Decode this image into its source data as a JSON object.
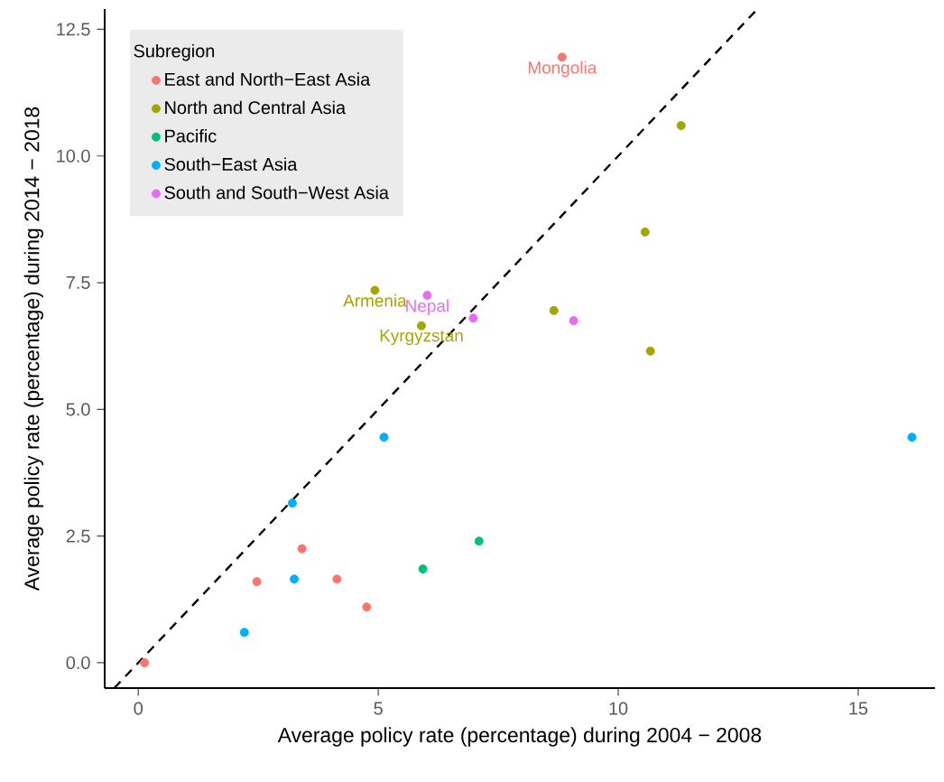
{
  "chart_data": {
    "type": "scatter",
    "xlabel": "Average policy rate (percentage) during 2004 − 2008",
    "ylabel": "Average policy rate (percentage) during 2014 − 2018",
    "legend_title": "Subregion",
    "legend": "top left",
    "grid": false,
    "xlim": [
      -0.7,
      16.6
    ],
    "ylim": [
      -0.5,
      12.9
    ],
    "xticks": [
      0,
      5,
      10,
      15
    ],
    "yticks": [
      {
        "value": 0,
        "label": "0.0"
      },
      {
        "value": 2.5,
        "label": "2.5"
      },
      {
        "value": 5,
        "label": "5.0"
      },
      {
        "value": 7.5,
        "label": "7.5"
      },
      {
        "value": 10,
        "label": "10.0"
      },
      {
        "value": 12.5,
        "label": "12.5"
      }
    ],
    "series": [
      {
        "name": "East and North−East Asia",
        "color": "#f8766d",
        "marker": "circle",
        "x": [
          0.13,
          2.47,
          3.41,
          4.14,
          4.76,
          8.83
        ],
        "values": [
          0.0,
          1.6,
          2.25,
          1.65,
          1.1,
          11.95
        ]
      },
      {
        "name": "North and Central Asia",
        "color": "#a3a500",
        "marker": "circle",
        "x": [
          4.93,
          5.9,
          11.31,
          10.56,
          8.66,
          10.67
        ],
        "values": [
          7.35,
          6.65,
          10.6,
          8.5,
          6.95,
          6.15
        ]
      },
      {
        "name": "Pacific",
        "color": "#00bf7d",
        "marker": "circle",
        "x": [
          5.93,
          7.1
        ],
        "values": [
          1.85,
          2.4
        ]
      },
      {
        "name": "South−East Asia",
        "color": "#00b0f6",
        "marker": "circle",
        "x": [
          5.12,
          3.21,
          3.25,
          2.21,
          16.12
        ],
        "values": [
          4.45,
          3.15,
          1.65,
          0.6,
          4.45
        ]
      },
      {
        "name": "South and South−West Asia",
        "color": "#e76bf3",
        "marker": "circle",
        "x": [
          6.02,
          6.98,
          9.07
        ],
        "values": [
          7.25,
          6.8,
          6.75
        ]
      },
      {
        "type": "line",
        "color": "#000000",
        "line_style": "dashed",
        "marker": "none",
        "x": [
          -0.5,
          12.9
        ],
        "values": [
          -0.5,
          12.9
        ]
      }
    ],
    "annotations": [
      {
        "text": "Mongolia",
        "x": 8.83,
        "y": 11.95
      },
      {
        "text": "Armenia",
        "x": 4.93,
        "y": 7.35
      },
      {
        "text": "Nepal",
        "x": 6.02,
        "y": 7.25
      },
      {
        "text": "Kyrgyzstan",
        "x": 5.9,
        "y": 6.65
      }
    ]
  }
}
